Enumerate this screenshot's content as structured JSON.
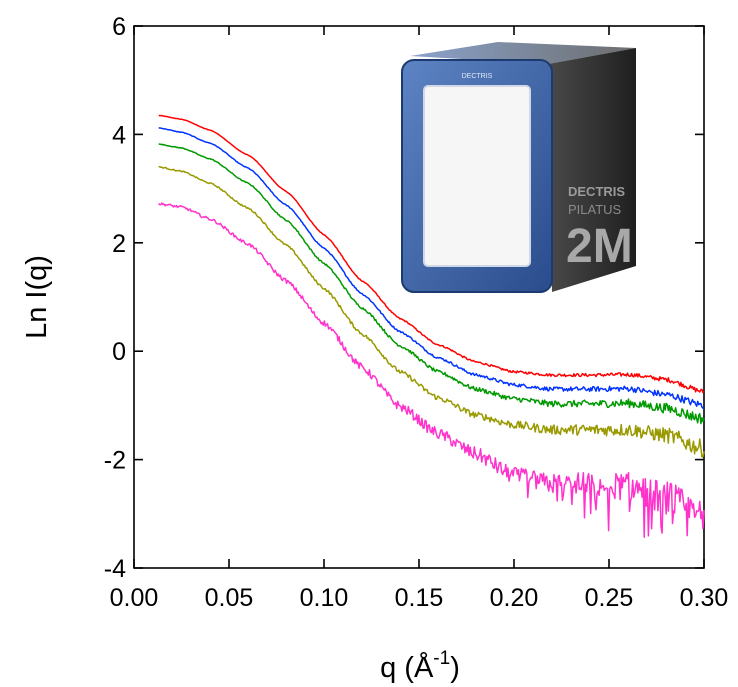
{
  "chart_data": {
    "type": "line",
    "title": "",
    "xlabel": "q (Å-1)",
    "xlabel_parts": {
      "main": "q (Å",
      "sup": "-1",
      "close": ")"
    },
    "ylabel": "Ln I(q)",
    "xlim": [
      0.0,
      0.3
    ],
    "ylim": [
      -4,
      6
    ],
    "xticks": [
      "0.00",
      "0.05",
      "0.10",
      "0.15",
      "0.20",
      "0.25",
      "0.30"
    ],
    "yticks": [
      "-4",
      "-2",
      "0",
      "2",
      "4",
      "6"
    ],
    "grid": false,
    "legend": "none",
    "q": [
      0.013,
      0.025,
      0.04,
      0.06,
      0.08,
      0.1,
      0.12,
      0.14,
      0.16,
      0.18,
      0.2,
      0.22,
      0.24,
      0.26,
      0.28,
      0.3
    ],
    "series": [
      {
        "color": "#ff0000",
        "noise": 0.04,
        "values": [
          4.35,
          4.28,
          4.08,
          3.62,
          2.95,
          2.15,
          1.3,
          0.6,
          0.12,
          -0.2,
          -0.38,
          -0.44,
          -0.44,
          -0.43,
          -0.52,
          -0.75
        ]
      },
      {
        "color": "#0033ff",
        "noise": 0.06,
        "values": [
          4.12,
          4.04,
          3.84,
          3.38,
          2.7,
          1.9,
          1.06,
          0.36,
          -0.12,
          -0.44,
          -0.62,
          -0.7,
          -0.7,
          -0.69,
          -0.8,
          -1.0
        ]
      },
      {
        "color": "#009900",
        "noise": 0.09,
        "values": [
          3.82,
          3.75,
          3.55,
          3.1,
          2.42,
          1.62,
          0.8,
          0.1,
          -0.38,
          -0.7,
          -0.88,
          -0.97,
          -0.97,
          -0.96,
          -1.05,
          -1.25
        ]
      },
      {
        "color": "#999900",
        "noise": 0.14,
        "values": [
          3.4,
          3.32,
          3.1,
          2.64,
          1.96,
          1.16,
          0.32,
          -0.38,
          -0.86,
          -1.18,
          -1.36,
          -1.45,
          -1.45,
          -1.45,
          -1.55,
          -1.8
        ]
      },
      {
        "color": "#ff33cc",
        "noise": 0.3,
        "values": [
          2.72,
          2.66,
          2.44,
          1.98,
          1.3,
          0.52,
          -0.3,
          -1.02,
          -1.52,
          -1.9,
          -2.3,
          -2.45,
          -2.45,
          -2.5,
          -2.7,
          -3.1
        ]
      }
    ],
    "inset_image": {
      "description": "DECTRIS PILATUS 2M detector",
      "brand_text": "DECTRIS",
      "model_text": "PILATUS",
      "size_text": "2M"
    }
  }
}
